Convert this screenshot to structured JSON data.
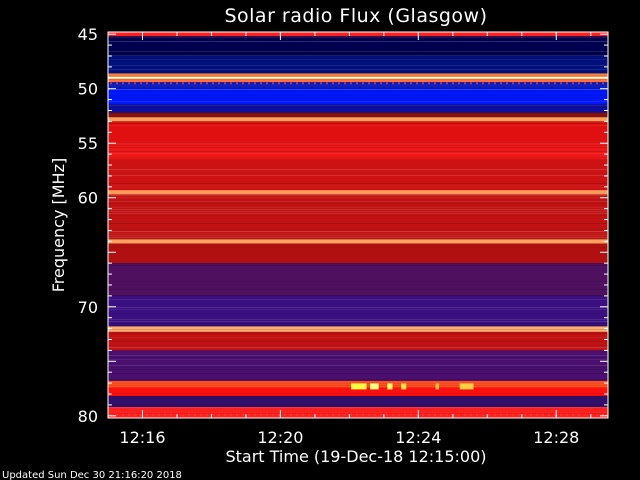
{
  "chart_data": {
    "type": "heatmap",
    "title": "Solar radio Flux (Glasgow)",
    "xlabel": "Start Time (19-Dec-18 12:15:00)",
    "ylabel": "Frequency [MHz]",
    "x_ticks": [
      {
        "label": "12:16",
        "minute": 1
      },
      {
        "label": "12:20",
        "minute": 5
      },
      {
        "label": "12:24",
        "minute": 9
      },
      {
        "label": "12:28",
        "minute": 13
      }
    ],
    "xlim_minutes": [
      0,
      14.5
    ],
    "y_ticks": [
      45,
      50,
      55,
      60,
      65,
      70,
      75,
      80
    ],
    "y_tick_labels": [
      "45",
      "50",
      "55",
      "60",
      "",
      "70",
      "",
      "80"
    ],
    "ylim": [
      44.8,
      80.2
    ],
    "frequency_bands": [
      {
        "from": 44.8,
        "to": 45.2,
        "color": "#ff2020"
      },
      {
        "from": 45.2,
        "to": 47.0,
        "color": "#000050"
      },
      {
        "from": 47.0,
        "to": 48.6,
        "color": "#00107a"
      },
      {
        "from": 48.6,
        "to": 48.9,
        "color": "#ff8040"
      },
      {
        "from": 48.9,
        "to": 49.1,
        "color": "#ffffd0"
      },
      {
        "from": 49.1,
        "to": 49.4,
        "color": "#ff7040"
      },
      {
        "from": 49.4,
        "to": 50.0,
        "color": "#1020c0"
      },
      {
        "from": 50.0,
        "to": 51.4,
        "color": "#0018ff"
      },
      {
        "from": 51.4,
        "to": 52.2,
        "color": "#1010a0"
      },
      {
        "from": 52.2,
        "to": 52.6,
        "color": "#8a1010"
      },
      {
        "from": 52.6,
        "to": 53.0,
        "color": "#ffa060"
      },
      {
        "from": 53.0,
        "to": 55.0,
        "color": "#e01010"
      },
      {
        "from": 55.0,
        "to": 56.5,
        "color": "#ee1818"
      },
      {
        "from": 56.5,
        "to": 59.3,
        "color": "#cc1212"
      },
      {
        "from": 59.3,
        "to": 59.7,
        "color": "#ff9a5a"
      },
      {
        "from": 59.7,
        "to": 63.8,
        "color": "#c01212"
      },
      {
        "from": 63.8,
        "to": 64.2,
        "color": "#ffa060"
      },
      {
        "from": 64.2,
        "to": 66.0,
        "color": "#b01010"
      },
      {
        "from": 66.0,
        "to": 69.0,
        "color": "#501060"
      },
      {
        "from": 69.0,
        "to": 71.8,
        "color": "#3a1080"
      },
      {
        "from": 71.8,
        "to": 72.3,
        "color": "#ffb070"
      },
      {
        "from": 72.3,
        "to": 74.0,
        "color": "#c01212"
      },
      {
        "from": 74.0,
        "to": 76.8,
        "color": "#4a1070"
      },
      {
        "from": 76.8,
        "to": 77.4,
        "color": "#ff5020"
      },
      {
        "from": 77.4,
        "to": 78.2,
        "color": "#ff1010"
      },
      {
        "from": 78.2,
        "to": 79.2,
        "color": "#30106a"
      },
      {
        "from": 79.2,
        "to": 80.2,
        "color": "#ff2020"
      }
    ],
    "bursts": [
      {
        "freq": 77.3,
        "start_min": 7.05,
        "end_min": 7.5,
        "color": "#ffff40"
      },
      {
        "freq": 77.3,
        "start_min": 7.6,
        "end_min": 7.85,
        "color": "#ffff80"
      },
      {
        "freq": 77.3,
        "start_min": 8.1,
        "end_min": 8.25,
        "color": "#ffff60"
      },
      {
        "freq": 77.3,
        "start_min": 8.5,
        "end_min": 8.65,
        "color": "#ffe040"
      },
      {
        "freq": 77.3,
        "start_min": 9.5,
        "end_min": 9.6,
        "color": "#ffc040"
      },
      {
        "freq": 77.3,
        "start_min": 10.2,
        "end_min": 10.6,
        "color": "#ffd040"
      }
    ]
  },
  "footer": {
    "updated": "Updated Sun Dec 30 21:16:20 2018"
  }
}
